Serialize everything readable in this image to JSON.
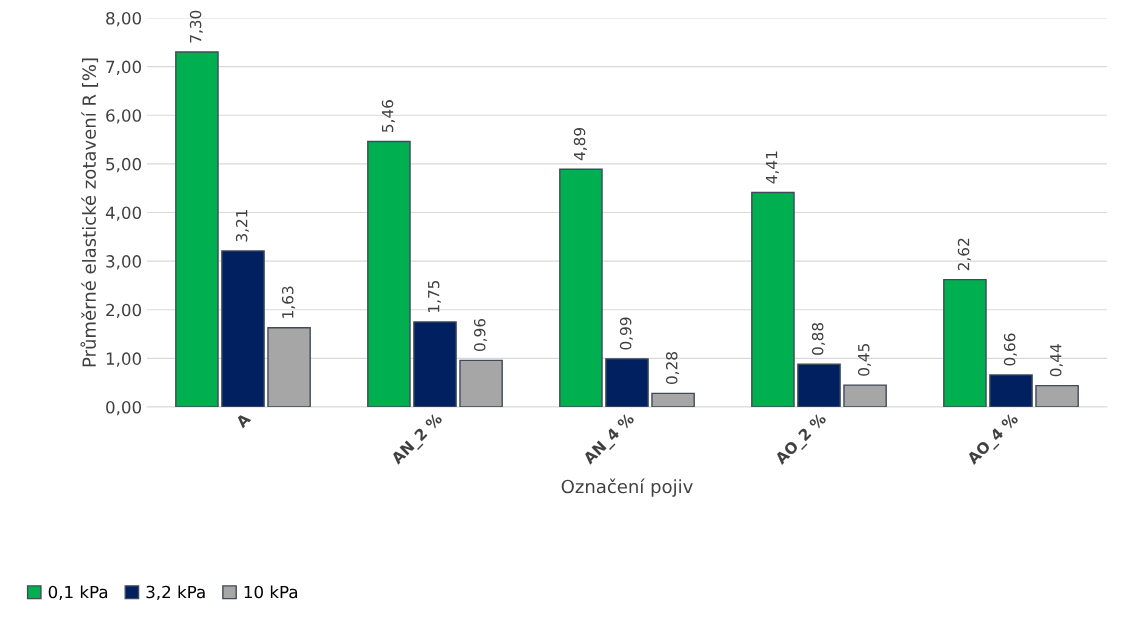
{
  "chart_data": {
    "type": "bar",
    "xlabel": "Označení pojiv",
    "ylabel": "Průměrné elastické zotavení R [%]",
    "categories": [
      "A",
      "AN_2 %",
      "AN_4 %",
      "AO_2 %",
      "AO_4 %"
    ],
    "series": [
      {
        "name": "0,1 kPa",
        "color": "#00b050",
        "values": [
          7.3,
          5.46,
          4.89,
          4.41,
          2.62
        ],
        "value_labels": [
          "7,30",
          "5,46",
          "4,89",
          "4,41",
          "2,62"
        ]
      },
      {
        "name": "3,2 kPa",
        "color": "#002060",
        "values": [
          3.21,
          1.75,
          0.99,
          0.88,
          0.66
        ],
        "value_labels": [
          "3,21",
          "1,75",
          "0,99",
          "0,88",
          "0,66"
        ]
      },
      {
        "name": "10 kPa",
        "color": "#a6a6a6",
        "values": [
          1.63,
          0.96,
          0.28,
          0.45,
          0.44
        ],
        "value_labels": [
          "1,63",
          "0,96",
          "0,28",
          "0,45",
          "0,44"
        ]
      }
    ],
    "ylim": [
      0,
      8
    ],
    "yticks": [
      {
        "value": 0,
        "label": "0,00"
      },
      {
        "value": 1,
        "label": "1,00"
      },
      {
        "value": 2,
        "label": "2,00"
      },
      {
        "value": 3,
        "label": "3,00"
      },
      {
        "value": 4,
        "label": "4,00"
      },
      {
        "value": 5,
        "label": "5,00"
      },
      {
        "value": 6,
        "label": "6,00"
      },
      {
        "value": 7,
        "label": "7,00"
      },
      {
        "value": 8,
        "label": "8,00"
      }
    ],
    "grid": "y",
    "legend": "bottom left"
  }
}
